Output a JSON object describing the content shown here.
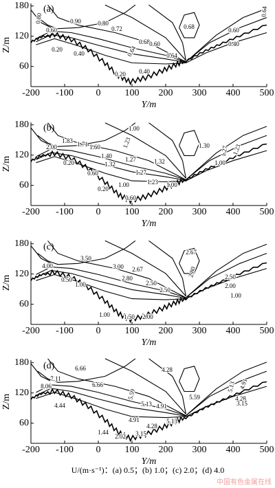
{
  "chart_data": [
    {
      "type": "contour",
      "panel_label": "(a)",
      "xlabel": "Y/m",
      "ylabel": "Z/m",
      "xlim": [
        -200,
        500
      ],
      "xticks": [
        -200,
        -100,
        0,
        100,
        200,
        300,
        400,
        500
      ],
      "ylim": [
        20,
        185
      ],
      "yticks": [
        60,
        120,
        180
      ],
      "contour_labels": [
        "0.80",
        "0.90",
        "0.80",
        "0.72",
        "0.68",
        "0.64",
        "0.60",
        "0.68",
        "0.60",
        "0.64",
        "0.64",
        "0.60",
        "0.20",
        "0.40",
        "0.20",
        "0.40",
        "0.40"
      ]
    },
    {
      "type": "contour",
      "panel_label": "(b)",
      "xlabel": "Y/m",
      "ylabel": "Z/m",
      "xlim": [
        -200,
        500
      ],
      "xticks": [
        -200,
        -100,
        0,
        100,
        200,
        300,
        400,
        500
      ],
      "ylim": [
        20,
        185
      ],
      "yticks": [
        60,
        120,
        180
      ],
      "contour_labels": [
        "1.00",
        "2.00",
        "1.83",
        "1.71",
        "1.60",
        "1.40",
        "1.32",
        "1.23",
        "1.27",
        "1.27",
        "1.32",
        "1.30",
        "1.27",
        "1.23",
        "1.00",
        "0.20",
        "0.60",
        "1.00",
        "1.23",
        "1.00",
        "0.20",
        "0.60"
      ]
    },
    {
      "type": "contour",
      "panel_label": "(c)",
      "xlabel": "Y/m",
      "ylabel": "Z/m",
      "xlim": [
        -200,
        500
      ],
      "xticks": [
        -200,
        -100,
        0,
        100,
        200,
        300,
        400,
        500
      ],
      "ylim": [
        20,
        185
      ],
      "yticks": [
        60,
        120,
        180
      ],
      "contour_labels": [
        "3.50",
        "4.00",
        "3.00",
        "2.67",
        "2.67",
        "2.80",
        "2.50",
        "2.00",
        "1.00",
        "2.80",
        "2.50",
        "2.50",
        "0.50",
        "1.00",
        "1.00",
        "1.50",
        "2.00"
      ]
    },
    {
      "type": "contour",
      "panel_label": "(d)",
      "xlabel": "Y/m",
      "ylabel": "Z/m",
      "xlim": [
        -200,
        500
      ],
      "xticks": [
        -200,
        -100,
        0,
        100,
        200,
        300,
        400,
        500
      ],
      "ylim": [
        20,
        185
      ],
      "yticks": [
        60,
        120,
        180
      ],
      "contour_labels": [
        "6.66",
        "4.28",
        "7.11",
        "8.06",
        "6.66",
        "5.59",
        "5.13",
        "4.91",
        "5.59",
        "5.13",
        "4.91",
        "4.28",
        "3.15",
        "4.91",
        "4.28",
        "5.13",
        "4.44",
        "1.44",
        "2.02",
        "3.15"
      ]
    }
  ],
  "caption": "U/(m·s⁻¹)：(a) 0.5；(b) 1.0；(c) 2.0；(d) 4.0",
  "watermark": "中国有色金属在线"
}
